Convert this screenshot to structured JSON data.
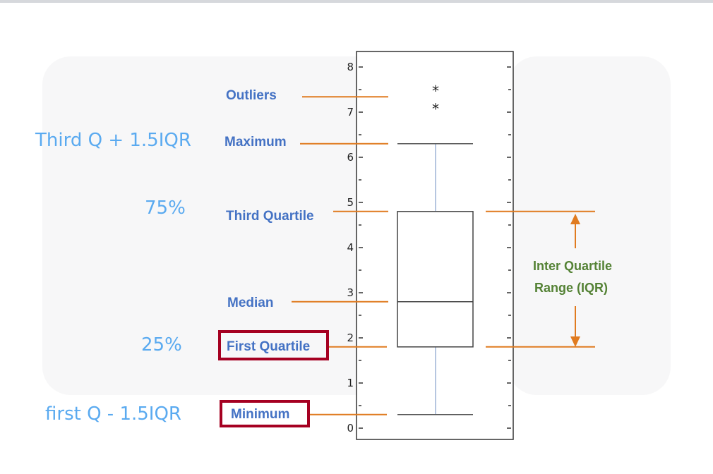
{
  "chart_data": {
    "type": "box",
    "ylim": [
      0,
      8
    ],
    "y_ticks": [
      "0",
      "1",
      "2",
      "3",
      "4",
      "5",
      "6",
      "7",
      "8"
    ],
    "box": {
      "minimum": 0.3,
      "first_quartile": 1.8,
      "median": 2.8,
      "third_quartile": 4.8,
      "maximum": 6.3
    },
    "outliers": [
      7.5,
      7.1
    ],
    "labels": {
      "outliers": "Outliers",
      "maximum": "Maximum",
      "third_quartile": "Third Quartile",
      "median": "Median",
      "first_quartile": "First Quartile",
      "minimum": "Minimum",
      "iqr_line1": "Inter Quartile",
      "iqr_line2": "Range (IQR)"
    },
    "annotations": {
      "upper_fence": "Third Q + 1.5IQR",
      "pct75": "75%",
      "pct25": "25%",
      "lower_fence": "first Q - 1.5IQR"
    },
    "colors": {
      "label_blue": "#4472c4",
      "iqr_green": "#548235",
      "leader_orange": "#e07b20",
      "annotation_blue": "#5aaaf0",
      "highlight_box": "#a50021",
      "whisker": "#9db3d6"
    }
  }
}
